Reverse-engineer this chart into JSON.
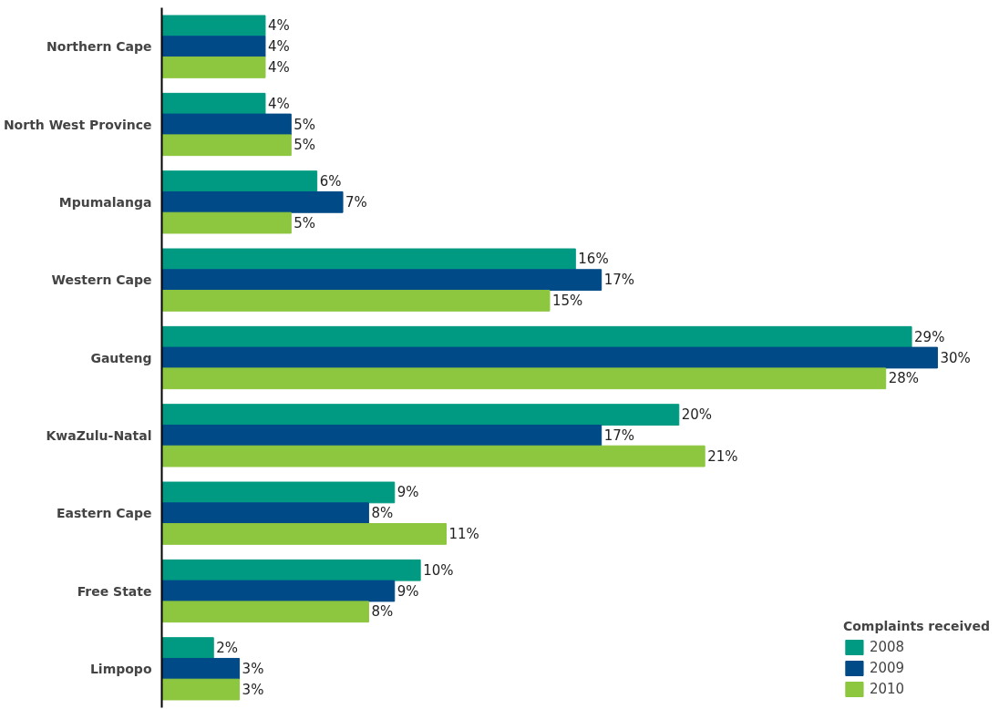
{
  "chart_data": {
    "type": "bar",
    "orientation": "horizontal",
    "categories": [
      "Northern Cape",
      "North West Province",
      "Mpumalanga",
      "Western Cape",
      "Gauteng",
      "KwaZulu-Natal",
      "Eastern Cape",
      "Free State",
      "Limpopo"
    ],
    "series": [
      {
        "name": "2008",
        "color": "#009a82",
        "values": [
          4,
          4,
          6,
          16,
          29,
          20,
          9,
          10,
          2
        ],
        "value_labels": [
          "4%",
          "4%",
          "6%",
          "16%",
          "29%",
          "20%",
          "9%",
          "10%",
          "2%"
        ]
      },
      {
        "name": "2009",
        "color": "#004b87",
        "values": [
          4,
          5,
          7,
          17,
          30,
          17,
          8,
          9,
          3
        ],
        "value_labels": [
          "4%",
          "5%",
          "7%",
          "17%",
          "30%",
          "17%",
          "8%",
          "9%",
          "3%"
        ]
      },
      {
        "name": "2010",
        "color": "#8dc63f",
        "values": [
          4,
          5,
          5,
          15,
          28,
          21,
          11,
          8,
          3
        ],
        "value_labels": [
          "4%",
          "5%",
          "5%",
          "15%",
          "28%",
          "21%",
          "11%",
          "8%",
          "3%"
        ]
      }
    ],
    "legend_title": "Complaints received",
    "legend": "bottom right",
    "grid": false
  }
}
